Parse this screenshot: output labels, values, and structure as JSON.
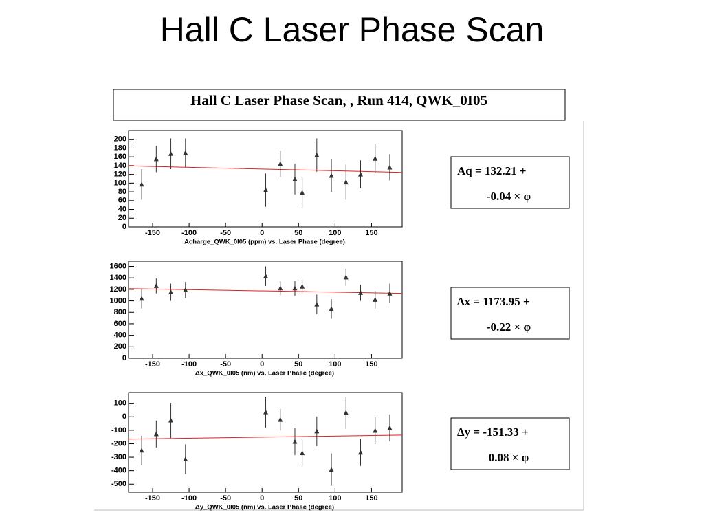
{
  "page_title": "Hall C Laser Phase Scan",
  "panel_title": "Hall C Laser Phase Scan, , Run 414, QWK_0I05",
  "chart_data": [
    {
      "type": "scatter",
      "x_label": "Acharge_QWK_0I05 (ppm) vs. Laser Phase (degree)",
      "x": [
        -165,
        -145,
        -125,
        -105,
        5,
        25,
        45,
        55,
        75,
        95,
        115,
        135,
        155,
        175
      ],
      "values": [
        97,
        155,
        167,
        169,
        84,
        144,
        109,
        78,
        164,
        117,
        102,
        120,
        156,
        136
      ],
      "errors": [
        35,
        30,
        35,
        33,
        38,
        30,
        35,
        35,
        38,
        37,
        40,
        32,
        33,
        30
      ],
      "xlim": [
        -183,
        192
      ],
      "ylim": [
        0,
        220
      ],
      "xticks": [
        -150,
        -100,
        -50,
        0,
        50,
        100,
        150
      ],
      "yticks": [
        0,
        20,
        40,
        60,
        80,
        100,
        120,
        140,
        160,
        180,
        200
      ],
      "fit": {
        "intercept": 132.21,
        "slope": -0.04
      },
      "fit_label": [
        "Aq =  132.21 +",
        "-0.04 × φ"
      ],
      "color": "#333333",
      "fit_color": "#e02020"
    },
    {
      "type": "scatter",
      "x_label": "Δx_QWK_0I05 (nm) vs. Laser Phase (degree)",
      "x": [
        -165,
        -145,
        -125,
        -105,
        5,
        25,
        45,
        55,
        75,
        95,
        115,
        135,
        155,
        175
      ],
      "values": [
        1040,
        1260,
        1150,
        1190,
        1430,
        1220,
        1220,
        1250,
        940,
        860,
        1410,
        1140,
        1020,
        1130
      ],
      "errors": [
        170,
        130,
        150,
        140,
        170,
        120,
        130,
        120,
        170,
        170,
        150,
        140,
        150,
        170
      ],
      "xlim": [
        -183,
        192
      ],
      "ylim": [
        0,
        1690
      ],
      "xticks": [
        -150,
        -100,
        -50,
        0,
        50,
        100,
        150
      ],
      "yticks": [
        0,
        200,
        400,
        600,
        800,
        1000,
        1200,
        1400,
        1600
      ],
      "fit": {
        "intercept": 1173.95,
        "slope": -0.22
      },
      "fit_label": [
        "Δx = 1173.95 +",
        "-0.22 × φ"
      ],
      "color": "#333333",
      "fit_color": "#e02020"
    },
    {
      "type": "scatter",
      "x_label": "Δy_QWK_0I05 (nm) vs. Laser Phase (degree)",
      "x": [
        -165,
        -145,
        -125,
        -105,
        5,
        25,
        45,
        55,
        75,
        95,
        115,
        135,
        155,
        175
      ],
      "values": [
        -250,
        -128,
        -27,
        -315,
        34,
        -22,
        -185,
        -270,
        -108,
        -392,
        30,
        -265,
        -103,
        -83
      ],
      "errors": [
        110,
        100,
        130,
        110,
        115,
        80,
        100,
        100,
        110,
        120,
        120,
        100,
        100,
        100
      ],
      "xlim": [
        -183,
        192
      ],
      "ylim": [
        -560,
        180
      ],
      "xticks": [
        -150,
        -100,
        -50,
        0,
        50,
        100,
        150
      ],
      "yticks": [
        -500,
        -400,
        -300,
        -200,
        -100,
        0,
        100
      ],
      "fit": {
        "intercept": -151.33,
        "slope": 0.08
      },
      "fit_label": [
        "Δy = -151.33 +",
        "0.08 × φ"
      ],
      "color": "#333333",
      "fit_color": "#e02020"
    }
  ]
}
